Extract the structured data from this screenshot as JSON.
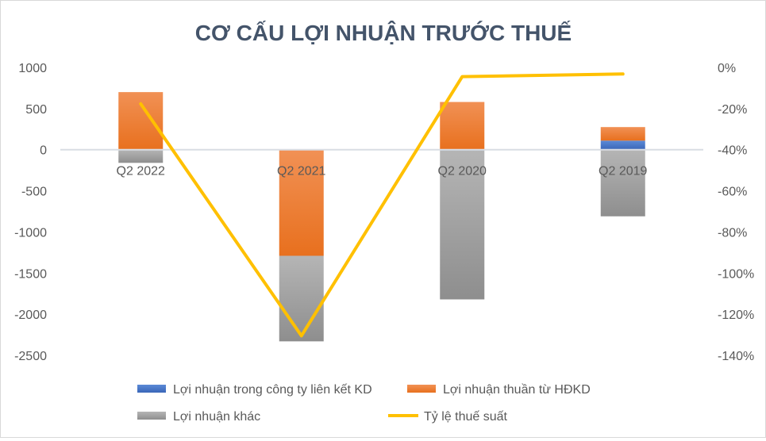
{
  "chart_data": {
    "type": "bar",
    "title": "CƠ CẤU LỢI NHUẬN TRƯỚC THUẾ",
    "categories": [
      "Q2 2022",
      "Q2 2021",
      "Q2 2020",
      "Q2 2019"
    ],
    "stacked": true,
    "series": [
      {
        "name": "Lợi nhuận trong công ty liên kết KD",
        "type": "bar",
        "axis": "left",
        "color": "#4472c4",
        "values": [
          0,
          0,
          -10,
          110
        ]
      },
      {
        "name": "Lợi nhuận thuần từ HĐKD",
        "type": "bar",
        "axis": "left",
        "color": "#ed7d31",
        "values": [
          700,
          -1290,
          580,
          165
        ]
      },
      {
        "name": "Lợi nhuận khác",
        "type": "bar",
        "axis": "left",
        "color": "#a5a5a5",
        "values": [
          -160,
          -1040,
          -1810,
          -810
        ]
      },
      {
        "name": "Tỷ lệ thuế suất",
        "type": "line",
        "axis": "right",
        "color": "#ffc000",
        "values": [
          -17.7,
          -130.5,
          -4.5,
          -3.2
        ]
      }
    ],
    "y_left": {
      "range": [
        -2500,
        1000
      ],
      "ticks": [
        "1000",
        "500",
        "0",
        "-500",
        "-1000",
        "-1500",
        "-2000",
        "-2500"
      ]
    },
    "y_right": {
      "range": [
        -140,
        0
      ],
      "unit": "%",
      "ticks": [
        "0%",
        "-20%",
        "-40%",
        "-60%",
        "-80%",
        "-100%",
        "-120%",
        "-140%"
      ]
    },
    "grid": false,
    "legend": "bottom"
  }
}
